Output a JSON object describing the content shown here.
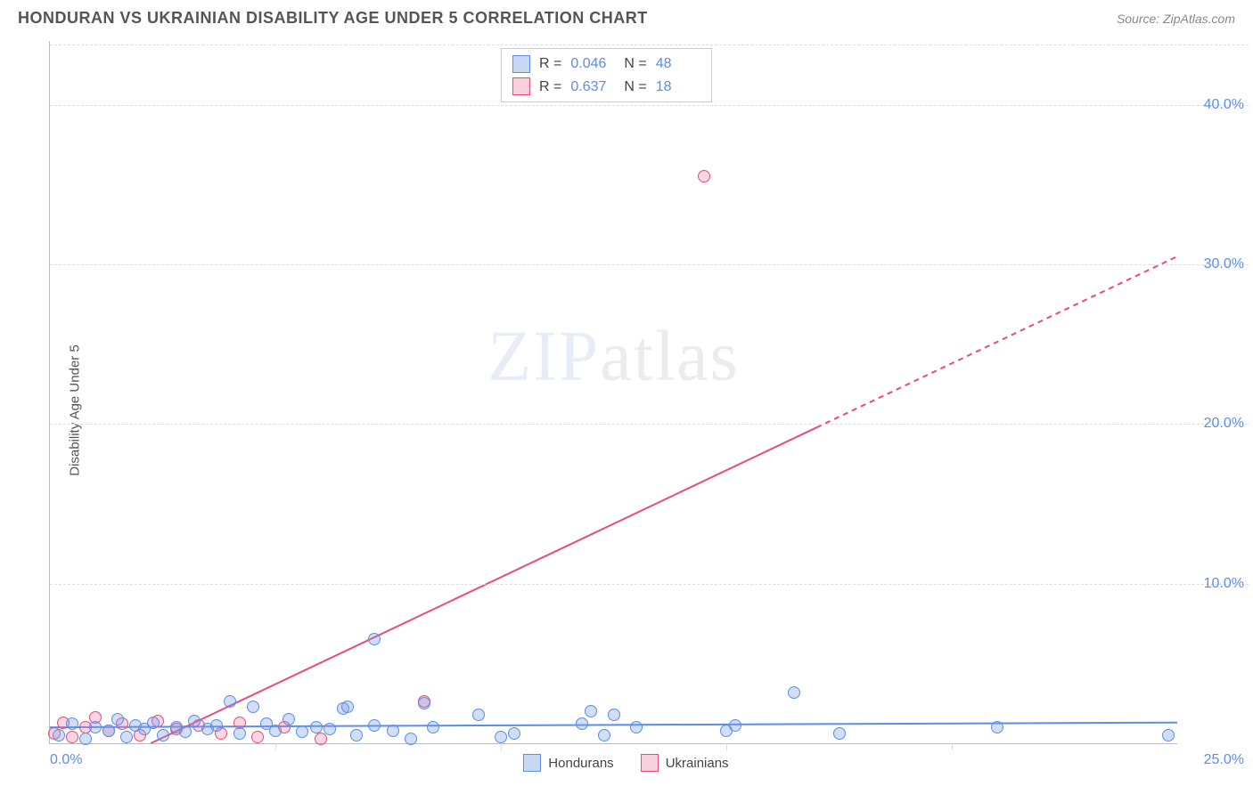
{
  "header": {
    "title": "HONDURAN VS UKRAINIAN DISABILITY AGE UNDER 5 CORRELATION CHART",
    "source_prefix": "Source: ",
    "source": "ZipAtlas.com"
  },
  "ylabel": "Disability Age Under 5",
  "watermark_bold": "ZIP",
  "watermark_thin": "atlas",
  "chart": {
    "type": "scatter",
    "xlim": [
      0,
      25
    ],
    "ylim": [
      0,
      44
    ],
    "x_tick_min_label": "0.0%",
    "x_tick_max_label": "25.0%",
    "y_ticks": [
      10,
      20,
      30,
      40
    ],
    "y_tick_labels": [
      "10.0%",
      "20.0%",
      "30.0%",
      "40.0%"
    ],
    "x_minor_ticks": [
      5,
      10,
      15,
      20
    ],
    "background_color": "#ffffff",
    "grid_color": "#dddddd",
    "axis_color": "#bbbbbb",
    "tick_label_color": "#5b8def",
    "marker_size": 14,
    "series": {
      "hondurans": {
        "color_fill": "rgba(120,160,230,0.35)",
        "color_stroke": "#5b8def",
        "R": "0.046",
        "N": "48",
        "trend": {
          "y_at_x0": 1.0,
          "y_at_x25": 1.3,
          "style": "solid"
        },
        "points": [
          [
            0.2,
            0.5
          ],
          [
            0.5,
            1.2
          ],
          [
            0.8,
            0.3
          ],
          [
            1.0,
            1.0
          ],
          [
            1.3,
            0.8
          ],
          [
            1.5,
            1.5
          ],
          [
            1.7,
            0.4
          ],
          [
            1.9,
            1.1
          ],
          [
            2.1,
            0.9
          ],
          [
            2.3,
            1.3
          ],
          [
            2.5,
            0.5
          ],
          [
            2.8,
            1.0
          ],
          [
            3.0,
            0.7
          ],
          [
            3.2,
            1.4
          ],
          [
            3.5,
            0.9
          ],
          [
            3.7,
            1.1
          ],
          [
            4.0,
            2.6
          ],
          [
            4.2,
            0.6
          ],
          [
            4.5,
            2.3
          ],
          [
            4.8,
            1.2
          ],
          [
            5.0,
            0.8
          ],
          [
            5.3,
            1.5
          ],
          [
            5.6,
            0.7
          ],
          [
            5.9,
            1.0
          ],
          [
            6.2,
            0.9
          ],
          [
            6.5,
            2.2
          ],
          [
            6.6,
            2.3
          ],
          [
            6.8,
            0.5
          ],
          [
            7.2,
            1.1
          ],
          [
            7.2,
            6.5
          ],
          [
            7.6,
            0.8
          ],
          [
            8.0,
            0.3
          ],
          [
            8.3,
            2.5
          ],
          [
            8.5,
            1.0
          ],
          [
            9.5,
            1.8
          ],
          [
            10.0,
            0.4
          ],
          [
            10.3,
            0.6
          ],
          [
            11.8,
            1.2
          ],
          [
            12.0,
            2.0
          ],
          [
            12.3,
            0.5
          ],
          [
            12.5,
            1.8
          ],
          [
            13.0,
            1.0
          ],
          [
            15.0,
            0.8
          ],
          [
            15.2,
            1.1
          ],
          [
            16.5,
            3.2
          ],
          [
            17.5,
            0.6
          ],
          [
            21.0,
            1.0
          ],
          [
            24.8,
            0.5
          ]
        ]
      },
      "ukrainians": {
        "color_fill": "rgba(240,120,160,0.30)",
        "color_stroke": "#e94b7a",
        "R": "0.637",
        "N": "18",
        "trend": {
          "y_at_x0": -3.0,
          "y_at_x25": 30.5,
          "solid_until_x": 17,
          "style": "dashed-after"
        },
        "points": [
          [
            0.1,
            0.6
          ],
          [
            0.3,
            1.3
          ],
          [
            0.5,
            0.4
          ],
          [
            0.8,
            1.0
          ],
          [
            1.0,
            1.6
          ],
          [
            1.3,
            0.8
          ],
          [
            1.6,
            1.2
          ],
          [
            2.0,
            0.5
          ],
          [
            2.4,
            1.4
          ],
          [
            2.8,
            0.9
          ],
          [
            3.3,
            1.1
          ],
          [
            3.8,
            0.6
          ],
          [
            4.2,
            1.3
          ],
          [
            4.6,
            0.4
          ],
          [
            5.2,
            1.0
          ],
          [
            6.0,
            0.3
          ],
          [
            8.3,
            2.6
          ],
          [
            14.5,
            35.5
          ]
        ]
      }
    }
  },
  "stats_box": {
    "label_R": "R =",
    "label_N": "N ="
  },
  "legend": {
    "hondurans": "Hondurans",
    "ukrainians": "Ukrainians"
  }
}
